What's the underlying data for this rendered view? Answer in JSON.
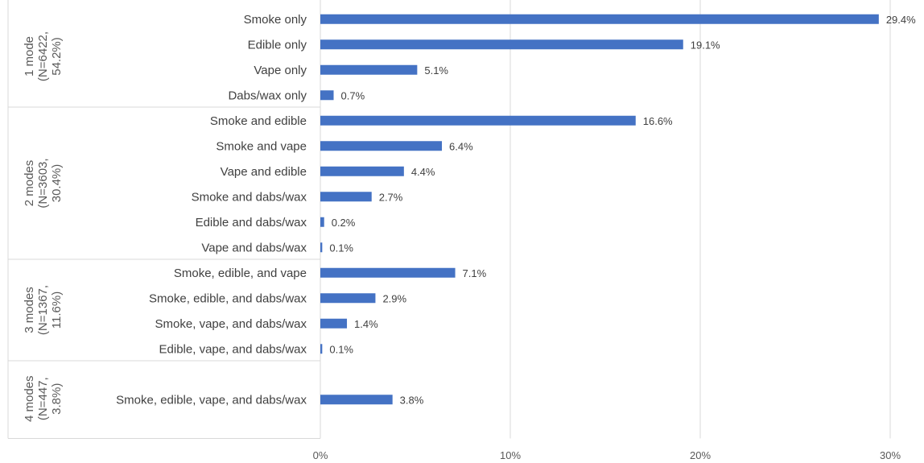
{
  "chart_data": {
    "type": "bar",
    "orientation": "horizontal",
    "title": "",
    "xlabel": "",
    "ylabel": "",
    "xlim": [
      0,
      30
    ],
    "x_ticks": [
      0,
      10,
      20,
      30
    ],
    "x_tick_labels": [
      "0%",
      "10%",
      "20%",
      "30%"
    ],
    "grid": "vertical",
    "legend": "none",
    "bar_color": "#4472C4",
    "groups": [
      {
        "label_lines": [
          "1 mode",
          "(N=6422,",
          "54.2%)"
        ],
        "categories": [
          "Smoke only",
          "Edible only",
          "Vape only",
          "Dabs/wax only"
        ],
        "values": [
          29.4,
          19.1,
          5.1,
          0.7
        ],
        "value_labels": [
          "29.4%",
          "19.1%",
          "5.1%",
          "0.7%"
        ]
      },
      {
        "label_lines": [
          "2 modes",
          "(N=3603,",
          "30.4%)"
        ],
        "categories": [
          "Smoke and edible",
          "Smoke and vape",
          "Vape and edible",
          "Smoke and dabs/wax",
          "Edible and dabs/wax",
          "Vape and dabs/wax"
        ],
        "values": [
          16.6,
          6.4,
          4.4,
          2.7,
          0.2,
          0.1
        ],
        "value_labels": [
          "16.6%",
          "6.4%",
          "4.4%",
          "2.7%",
          "0.2%",
          "0.1%"
        ]
      },
      {
        "label_lines": [
          "3 modes",
          "(N=1367,",
          "11.6%)"
        ],
        "categories": [
          "Smoke, edible, and vape",
          "Smoke, edible, and dabs/wax",
          "Smoke, vape, and dabs/wax",
          "Edible, vape, and dabs/wax"
        ],
        "values": [
          7.1,
          2.9,
          1.4,
          0.1
        ],
        "value_labels": [
          "7.1%",
          "2.9%",
          "1.4%",
          "0.1%"
        ]
      },
      {
        "label_lines": [
          "4 modes",
          "(N=447,",
          "3.8%)"
        ],
        "categories": [
          "Smoke, edible, vape, and dabs/wax"
        ],
        "values": [
          3.8
        ],
        "value_labels": [
          "3.8%"
        ]
      }
    ]
  }
}
